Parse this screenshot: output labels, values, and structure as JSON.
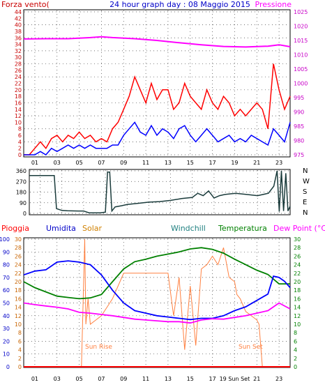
{
  "chart_data": [
    {
      "type": "line",
      "title": "24 hour graph day : 08 Maggio 2015",
      "left_label": "Forza vento(",
      "right_label": "Pressione",
      "x_ticks": [
        "01",
        "03",
        "05",
        "07",
        "09",
        "11",
        "13",
        "15",
        "17",
        "19",
        "21",
        "23"
      ],
      "wind_scale": {
        "ticks": [
          "0",
          "2",
          "4",
          "6",
          "8",
          "10",
          "12",
          "14",
          "16",
          "18",
          "20",
          "22",
          "24",
          "26",
          "28",
          "30",
          "32",
          "34",
          "36",
          "38",
          "40",
          "42",
          "44"
        ],
        "ylim": [
          0,
          44
        ]
      },
      "pressure_scale": {
        "ticks": [
          "975",
          "980",
          "985",
          "990",
          "995",
          "1000",
          "1005",
          "1010",
          "1015",
          "1020",
          "1025"
        ],
        "ylim": [
          975,
          1025
        ]
      },
      "grid": true,
      "series": [
        {
          "key": "gust",
          "color": "#ff0000",
          "x": [
            0,
            0.5,
            1,
            1.5,
            2,
            2.5,
            3,
            3.5,
            4,
            4.5,
            5,
            5.5,
            6,
            6.5,
            7,
            7.5,
            8,
            8.5,
            9,
            9.5,
            10,
            10.5,
            11,
            11.5,
            12,
            12.5,
            13,
            13.5,
            14,
            14.5,
            15,
            15.5,
            16,
            16.5,
            17,
            17.5,
            18,
            18.5,
            19,
            19.5,
            20,
            20.5,
            21,
            21.5,
            22,
            22.5,
            23,
            23.5,
            24
          ],
          "y": [
            0,
            0,
            2,
            4,
            2,
            5,
            6,
            4,
            6,
            5,
            7,
            5,
            6,
            4,
            5,
            4,
            8,
            10,
            14,
            18,
            24,
            20,
            16,
            22,
            17,
            20,
            20,
            14,
            16,
            22,
            18,
            16,
            14,
            20,
            16,
            14,
            18,
            16,
            12,
            14,
            12,
            14,
            16,
            14,
            8,
            28,
            20,
            14,
            18
          ]
        },
        {
          "key": "wind",
          "color": "#0000ff",
          "x": [
            0,
            0.5,
            1,
            1.5,
            2,
            2.5,
            3,
            3.5,
            4,
            4.5,
            5,
            5.5,
            6,
            6.5,
            7,
            7.5,
            8,
            8.5,
            9,
            9.5,
            10,
            10.5,
            11,
            11.5,
            12,
            12.5,
            13,
            13.5,
            14,
            14.5,
            15,
            15.5,
            16,
            16.5,
            17,
            17.5,
            18,
            18.5,
            19,
            19.5,
            20,
            20.5,
            21,
            21.5,
            22,
            22.5,
            23,
            23.5,
            24
          ],
          "y": [
            0,
            0,
            0,
            1,
            0,
            2,
            1,
            2,
            3,
            2,
            3,
            2,
            3,
            2,
            2,
            2,
            3,
            3,
            6,
            8,
            10,
            7,
            6,
            9,
            6,
            8,
            7,
            5,
            8,
            9,
            6,
            4,
            6,
            8,
            6,
            4,
            5,
            6,
            4,
            5,
            4,
            6,
            5,
            4,
            3,
            8,
            6,
            4,
            10
          ]
        },
        {
          "key": "pressure",
          "color": "#ff00ff",
          "x": [
            0,
            2,
            4,
            6,
            7,
            8,
            10,
            12,
            14,
            16,
            18,
            20,
            22,
            23,
            24
          ],
          "y": [
            1015.5,
            1015.6,
            1015.6,
            1016.0,
            1016.3,
            1016.0,
            1015.6,
            1015.0,
            1014.2,
            1013.5,
            1012.9,
            1012.7,
            1013.0,
            1013.5,
            1012.8
          ]
        }
      ]
    },
    {
      "type": "line",
      "direction_ticks": [
        "360",
        "270",
        "180",
        "90",
        "0"
      ],
      "compass": [
        "N",
        "W",
        "S",
        "E",
        "N"
      ],
      "ylim": [
        0,
        360
      ],
      "series": [
        {
          "key": "direction",
          "color": "#1a3b3b",
          "x": [
            0,
            2.3,
            2.5,
            3,
            3.5,
            4.5,
            5,
            5.5,
            6.5,
            7,
            7.2,
            7.4,
            7.6,
            7.9,
            8.5,
            9,
            10,
            11,
            12,
            13,
            14,
            15,
            15.5,
            16,
            16.5,
            17,
            17.5,
            18,
            18.5,
            19,
            20,
            21,
            22,
            22.5,
            22.8,
            23,
            23.2,
            23.4,
            23.6,
            23.8,
            24
          ],
          "y": [
            320,
            320,
            40,
            25,
            22,
            20,
            20,
            5,
            5,
            10,
            350,
            350,
            20,
            55,
            65,
            75,
            85,
            95,
            100,
            110,
            125,
            135,
            170,
            150,
            190,
            130,
            150,
            160,
            165,
            170,
            160,
            150,
            170,
            230,
            360,
            15,
            360,
            20,
            340,
            20,
            60
          ]
        }
      ]
    },
    {
      "type": "line",
      "labels": {
        "rain": "Pioggia",
        "humidity": "Umidita",
        "solar": "Solar",
        "windchill": "Windchill",
        "temperature": "Temperatura",
        "dewpoint": "Dew Point (°C)"
      },
      "left_ticks": [
        "0",
        "10",
        "20",
        "30",
        "40",
        "50",
        "60",
        "70",
        "80",
        "90",
        "100"
      ],
      "second_ticks": [
        "0",
        "2",
        "4",
        "6",
        "8",
        "10",
        "12",
        "14",
        "16",
        "18",
        "20",
        "22",
        "24",
        "26",
        "28",
        "30"
      ],
      "right_ticks": [
        "0",
        "2",
        "4",
        "6",
        "8",
        "10",
        "12",
        "14",
        "16",
        "18",
        "20",
        "22",
        "24",
        "26",
        "28",
        "30"
      ],
      "annotations": [
        "Sun Rise",
        "Sun Set"
      ],
      "x_ticks": [
        "01",
        "03",
        "05",
        "07",
        "09",
        "11",
        "13",
        "15",
        "17",
        "19 Sun Set",
        "21",
        "23"
      ],
      "series": [
        {
          "key": "humidity",
          "color": "#0000ff",
          "unit": "%",
          "x": [
            0,
            1,
            2,
            3,
            4,
            5,
            6,
            7,
            8,
            9,
            10,
            11,
            12,
            13,
            14,
            15,
            16,
            17,
            18,
            19,
            20,
            21,
            22,
            22.5,
            23,
            23.5,
            24
          ],
          "y": [
            72,
            75,
            76,
            82,
            83,
            82,
            80,
            72,
            60,
            50,
            44,
            42,
            40,
            39,
            38,
            37,
            38,
            38,
            40,
            44,
            47,
            52,
            57,
            71,
            70,
            67,
            62
          ]
        },
        {
          "key": "temperature",
          "color": "#008000",
          "unit": "°C",
          "x": [
            0,
            1,
            2,
            3,
            4,
            5,
            6,
            7,
            8,
            9,
            10,
            11,
            12,
            13,
            14,
            15,
            16,
            17,
            18,
            19,
            20,
            21,
            22,
            23,
            24
          ],
          "y": [
            20,
            18.6,
            17.6,
            16.6,
            16.3,
            16,
            16.2,
            17,
            20,
            23,
            24.7,
            25.3,
            26,
            26.5,
            27,
            27.7,
            28,
            27.6,
            26.7,
            25.3,
            24,
            22.7,
            21.7,
            19.5,
            19.5
          ]
        },
        {
          "key": "dewpoint",
          "color": "#ff00ff",
          "unit": "°C",
          "x": [
            0,
            1,
            2,
            3,
            4,
            5,
            6,
            7,
            8,
            9,
            10,
            11,
            12,
            13,
            14,
            15,
            16,
            17,
            18,
            19,
            20,
            21,
            22,
            23,
            24
          ],
          "y": [
            15,
            14.6,
            14.3,
            14,
            13.6,
            12.8,
            12.6,
            12.3,
            12,
            11.6,
            11.2,
            11,
            10.8,
            10.6,
            10.6,
            10.3,
            11,
            11.3,
            11.2,
            11.6,
            12,
            12.6,
            13.2,
            15,
            13.6
          ]
        },
        {
          "key": "solar",
          "color": "#ff8040",
          "x": [
            0,
            5.2,
            5.5,
            5.6,
            5.8,
            6,
            6.5,
            7,
            7.5,
            8,
            9,
            10,
            11,
            12,
            13,
            13.5,
            14,
            14.5,
            15,
            15.5,
            16,
            16.5,
            17,
            17.5,
            18,
            18.5,
            19,
            19.2,
            19.5,
            20,
            21,
            21.2,
            21.5,
            22,
            24
          ],
          "y": [
            0,
            0,
            30,
            10,
            16,
            10,
            11,
            12,
            14,
            16,
            22,
            22,
            22,
            22,
            22,
            12,
            21,
            4,
            19,
            5,
            23,
            24,
            26,
            24,
            28,
            21,
            20,
            17,
            16,
            13,
            11,
            10,
            0,
            0,
            0
          ]
        },
        {
          "key": "rain",
          "color": "#ff0000",
          "unit": "mm",
          "x": [
            0,
            24
          ],
          "y": [
            0,
            0
          ]
        }
      ]
    }
  ]
}
